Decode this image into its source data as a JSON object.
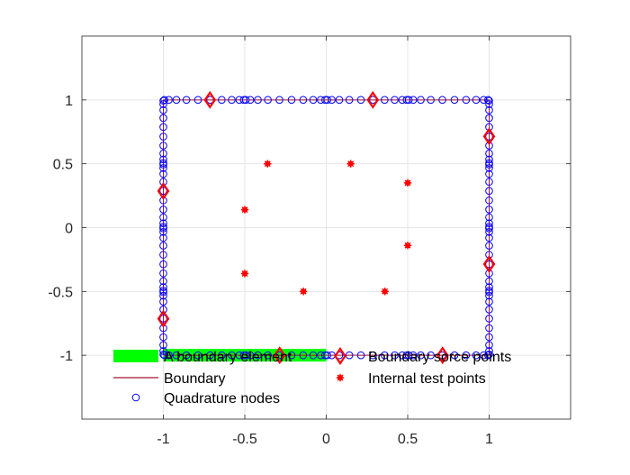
{
  "chart_data": {
    "type": "scatter",
    "title": "",
    "xlabel": "",
    "ylabel": "",
    "xlim": [
      -1.5,
      1.5
    ],
    "ylim": [
      -1.5,
      1.5
    ],
    "xticks": [
      -1,
      -0.5,
      0,
      0.5,
      1
    ],
    "xtick_labels": [
      "-1",
      "-0.5",
      "0",
      "0.5",
      "1"
    ],
    "yticks": [
      1,
      0.5,
      0,
      -0.5,
      -1
    ],
    "ytick_labels": [
      "1",
      "0.5",
      "0",
      "-0.5",
      "-1"
    ],
    "grid": true,
    "legend_placement": "bottom (inside axes)",
    "colors": {
      "boundary_element": "#00ff00",
      "boundary": "#a2142f",
      "quadrature": "#0000ff",
      "source": "#ff0000",
      "internal": "#ff0000"
    },
    "boundary_element": {
      "name": "A boundary element",
      "from": [
        -1,
        -1
      ],
      "to": [
        0,
        -1
      ]
    },
    "boundary": {
      "name": "Boundary",
      "x": [
        -1,
        1,
        1,
        -1,
        -1
      ],
      "y": [
        -1,
        -1,
        1,
        1,
        -1
      ]
    },
    "quadrature_nodes": {
      "name": "Quadrature nodes",
      "nodes_per_element": 10,
      "element_length": 0.5,
      "gauss_local": [
        -0.9739,
        -0.8651,
        -0.6794,
        -0.4334,
        -0.1489,
        0.1489,
        0.4334,
        0.6794,
        0.8651,
        0.9739
      ]
    },
    "boundary_source_points": {
      "name": "Boundary sorce points",
      "points": [
        [
          -0.714,
          1
        ],
        [
          0.286,
          1
        ],
        [
          1,
          0.714
        ],
        [
          1,
          -0.286
        ],
        [
          0.714,
          -1
        ],
        [
          -0.286,
          -1
        ],
        [
          -1,
          -0.714
        ],
        [
          -1,
          0.286
        ]
      ]
    },
    "internal_test_points": {
      "name": "Internal test points",
      "points": [
        [
          -0.36,
          0.5
        ],
        [
          0.15,
          0.5
        ],
        [
          -0.5,
          0.14
        ],
        [
          0.5,
          0.35
        ],
        [
          0.5,
          -0.14
        ],
        [
          -0.5,
          -0.36
        ],
        [
          -0.14,
          -0.5
        ],
        [
          0.36,
          -0.5
        ]
      ]
    },
    "legend": [
      {
        "key": "boundary_element",
        "label": "A boundary element"
      },
      {
        "key": "boundary",
        "label": "Boundary"
      },
      {
        "key": "quadrature",
        "label": "Quadrature nodes"
      },
      {
        "key": "source",
        "label": "Boundary sorce points"
      },
      {
        "key": "internal",
        "label": "Internal test points"
      }
    ]
  }
}
